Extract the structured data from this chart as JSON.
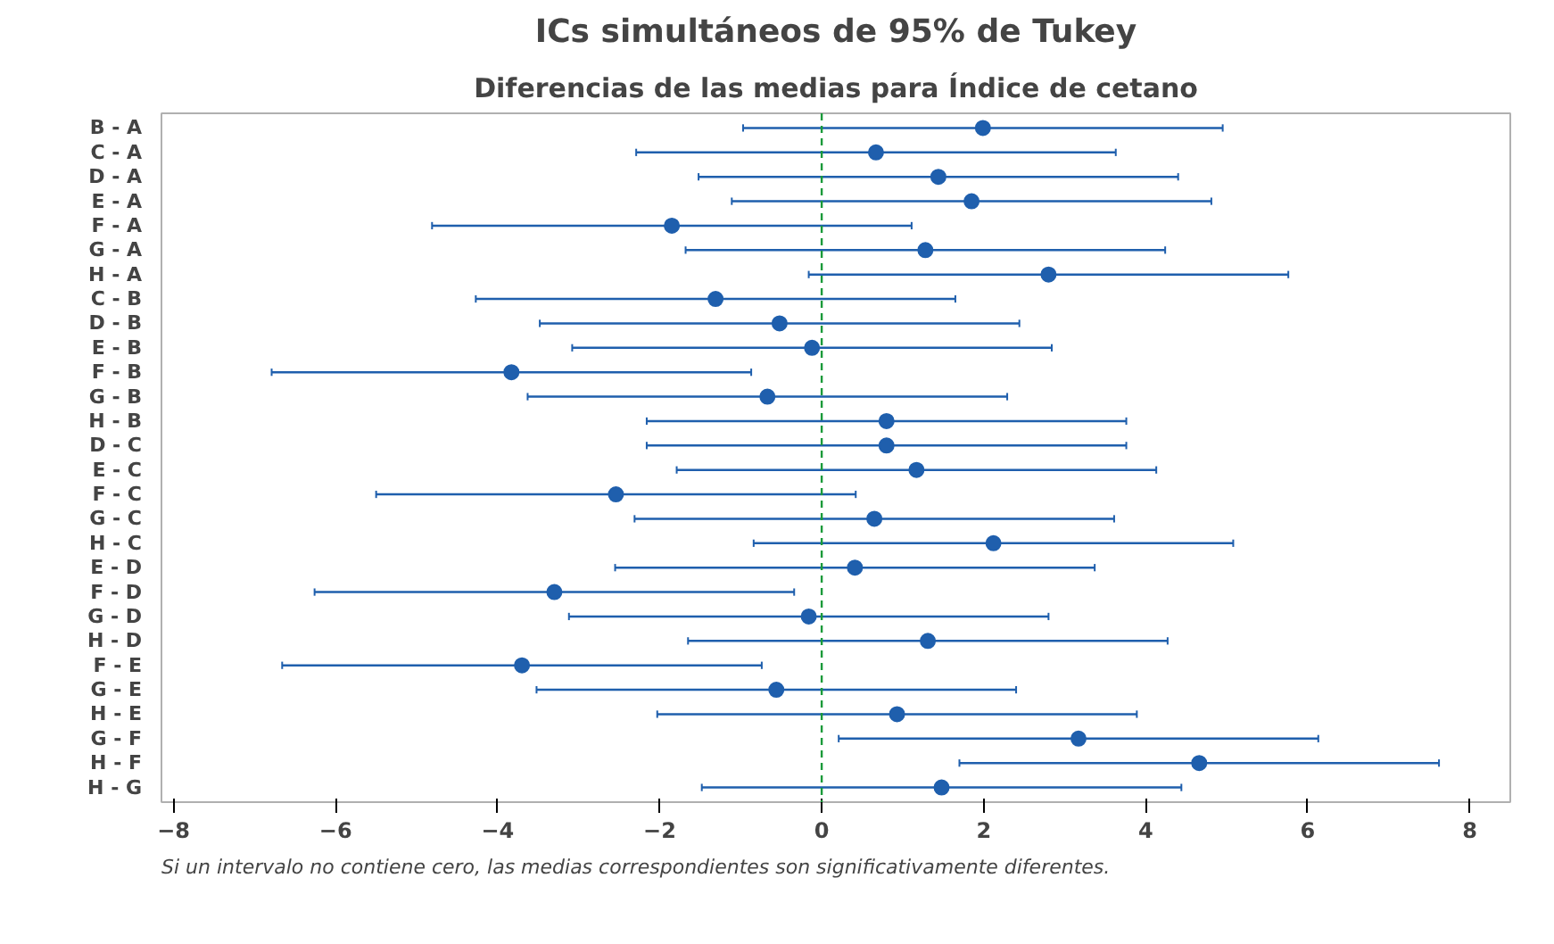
{
  "chart_data": {
    "type": "scatter",
    "orientation": "horizontal",
    "title": "ICs simultáneos de 95% de Tukey",
    "subtitle": "Diferencias de las medias para Índice de cetano",
    "categories": [
      "B - A",
      "C - A",
      "D - A",
      "E - A",
      "F - A",
      "G - A",
      "H - A",
      "C - B",
      "D - B",
      "E - B",
      "F - B",
      "G - B",
      "H - B",
      "D - C",
      "E - C",
      "F - C",
      "G - C",
      "H - C",
      "E - D",
      "F - D",
      "G - D",
      "H - D",
      "F - E",
      "G - E",
      "H - E",
      "G - F",
      "H - F",
      "H - G"
    ],
    "values": [
      1.99,
      0.67,
      1.44,
      1.85,
      -1.85,
      1.28,
      2.8,
      -1.31,
      -0.52,
      -0.12,
      -3.83,
      -0.67,
      0.8,
      0.8,
      1.17,
      -2.54,
      0.65,
      2.12,
      0.41,
      -3.3,
      -0.16,
      1.31,
      -3.7,
      -0.56,
      0.93,
      3.17,
      4.66,
      1.48
    ],
    "errors": [
      2.96,
      2.96,
      2.96,
      2.96,
      2.96,
      2.96,
      2.96,
      2.96,
      2.96,
      2.96,
      2.96,
      2.96,
      2.96,
      2.96,
      2.96,
      2.96,
      2.96,
      2.96,
      2.96,
      2.96,
      2.96,
      2.96,
      2.96,
      2.96,
      2.96,
      2.96,
      2.96,
      2.96
    ],
    "color": "#1f5fad",
    "marker": "circle",
    "grid": false,
    "xlim": [
      -8.15,
      8.5
    ],
    "xticks": [
      -8,
      -6,
      -4,
      -2,
      0,
      2,
      4,
      6,
      8
    ],
    "ref_lines": [
      {
        "axis": "x",
        "value": 0,
        "color": "#1a9a3a",
        "line_style": "dashed"
      }
    ],
    "annotations": [
      "Si un intervalo no contiene cero, las medias correspondientes son significativamente diferentes."
    ]
  }
}
